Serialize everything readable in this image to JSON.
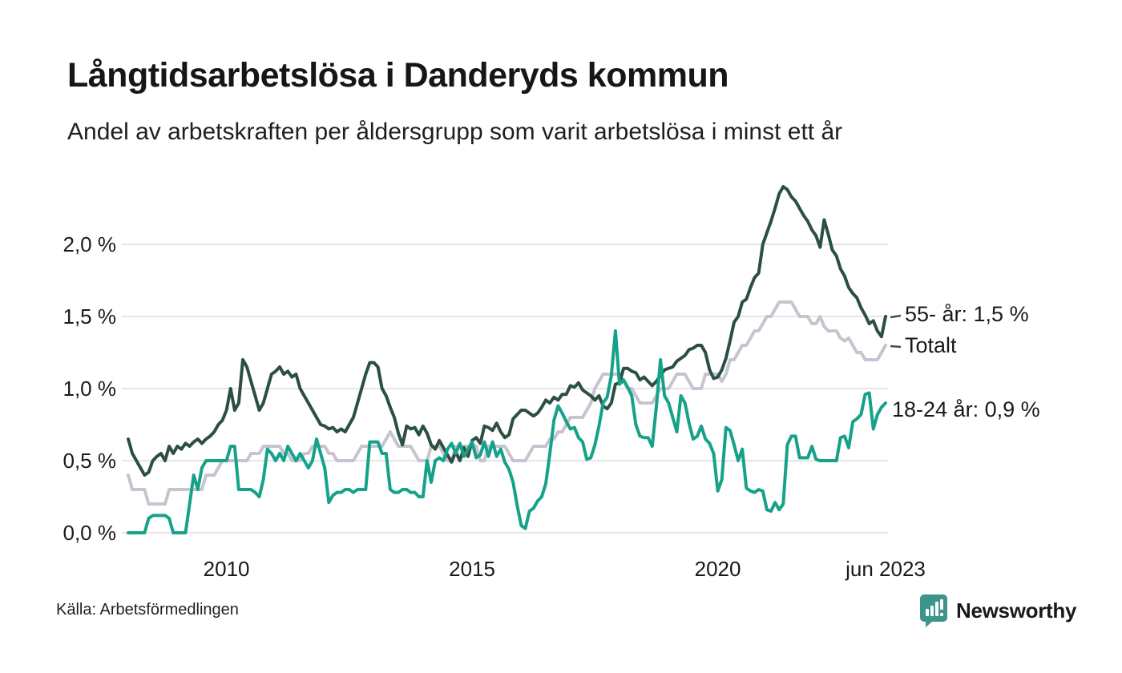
{
  "header": {
    "title": "Långtidsarbetslösa i Danderyds kommun",
    "subtitle": "Andel av arbetskraften per åldersgrupp som varit arbetslösa i minst ett år"
  },
  "footer": {
    "source": "Källa: Arbetsförmedlingen",
    "logo_text": "Newsworthy",
    "logo_color": "#3d948b",
    "logo_icon": "newsworthy-bar-chart-pin-icon"
  },
  "colors": {
    "grid": "#e6e6e6",
    "axis_text": "#1a1a1a",
    "leader_dash": "#4a4a4a",
    "background": "#ffffff"
  },
  "chart_data": {
    "type": "line",
    "title": "Långtidsarbetslösa i Danderyds kommun",
    "subtitle": "Andel av arbetskraften per åldersgrupp som varit arbetslösa i minst ett år",
    "x_unit": "month",
    "x_start": "2008-01",
    "x_end": "2023-06",
    "grid": true,
    "legend_position": "right-end-labels",
    "y_axis": {
      "min": 0.0,
      "max": 2.5,
      "unit": "%"
    },
    "y_ticks": [
      {
        "label": "0,0 %",
        "value": 0.0
      },
      {
        "label": "0,5 %",
        "value": 0.5
      },
      {
        "label": "1,0 %",
        "value": 1.0
      },
      {
        "label": "1,5 %",
        "value": 1.5
      },
      {
        "label": "2,0 %",
        "value": 2.0
      }
    ],
    "x_ticks": [
      {
        "label": "2010",
        "month_index": 24
      },
      {
        "label": "2015",
        "month_index": 84
      },
      {
        "label": "2020",
        "month_index": 144
      },
      {
        "label": "jun 2023",
        "month_index": 185
      }
    ],
    "series": [
      {
        "name": "Totalt",
        "end_label": "Totalt",
        "end_value": 1.3,
        "color": "#c6c4d0",
        "values": [
          0.4,
          0.3,
          0.3,
          0.3,
          0.3,
          0.2,
          0.2,
          0.2,
          0.2,
          0.2,
          0.3,
          0.3,
          0.3,
          0.3,
          0.3,
          0.3,
          0.3,
          0.3,
          0.3,
          0.4,
          0.4,
          0.4,
          0.45,
          0.5,
          0.5,
          0.5,
          0.5,
          0.5,
          0.5,
          0.5,
          0.55,
          0.55,
          0.55,
          0.6,
          0.6,
          0.6,
          0.6,
          0.6,
          0.55,
          0.55,
          0.5,
          0.5,
          0.5,
          0.55,
          0.55,
          0.6,
          0.6,
          0.6,
          0.6,
          0.55,
          0.55,
          0.5,
          0.5,
          0.5,
          0.5,
          0.5,
          0.55,
          0.6,
          0.6,
          0.6,
          0.6,
          0.6,
          0.6,
          0.65,
          0.7,
          0.65,
          0.6,
          0.6,
          0.6,
          0.6,
          0.55,
          0.5,
          0.5,
          0.5,
          0.6,
          0.6,
          0.6,
          0.55,
          0.5,
          0.5,
          0.6,
          0.6,
          0.6,
          0.6,
          0.6,
          0.6,
          0.5,
          0.5,
          0.6,
          0.6,
          0.6,
          0.6,
          0.6,
          0.55,
          0.5,
          0.5,
          0.5,
          0.5,
          0.55,
          0.6,
          0.6,
          0.6,
          0.6,
          0.65,
          0.65,
          0.7,
          0.7,
          0.75,
          0.8,
          0.8,
          0.8,
          0.8,
          0.85,
          0.9,
          1.0,
          1.05,
          1.1,
          1.1,
          1.1,
          1.1,
          1.1,
          1.05,
          1.0,
          1.0,
          0.95,
          0.9,
          0.9,
          0.9,
          0.9,
          0.95,
          1.0,
          1.0,
          1.0,
          1.05,
          1.1,
          1.1,
          1.1,
          1.05,
          1.0,
          1.0,
          1.0,
          1.1,
          1.1,
          1.1,
          1.1,
          1.05,
          1.1,
          1.2,
          1.2,
          1.25,
          1.3,
          1.3,
          1.35,
          1.4,
          1.4,
          1.45,
          1.5,
          1.5,
          1.55,
          1.6,
          1.6,
          1.6,
          1.6,
          1.55,
          1.5,
          1.5,
          1.5,
          1.45,
          1.45,
          1.5,
          1.43,
          1.4,
          1.4,
          1.4,
          1.35,
          1.33,
          1.35,
          1.3,
          1.25,
          1.25,
          1.2,
          1.2,
          1.2,
          1.2,
          1.25,
          1.3
        ]
      },
      {
        "name": "55- år",
        "end_label": "55- år: 1,5 %",
        "end_value": 1.5,
        "color": "#2c4f43",
        "values": [
          0.65,
          0.55,
          0.5,
          0.45,
          0.4,
          0.42,
          0.5,
          0.53,
          0.55,
          0.5,
          0.6,
          0.55,
          0.6,
          0.58,
          0.62,
          0.6,
          0.63,
          0.65,
          0.62,
          0.65,
          0.67,
          0.7,
          0.75,
          0.78,
          0.85,
          1.0,
          0.85,
          0.9,
          1.2,
          1.15,
          1.05,
          0.95,
          0.85,
          0.9,
          1.0,
          1.1,
          1.12,
          1.15,
          1.1,
          1.12,
          1.08,
          1.1,
          1.0,
          0.95,
          0.9,
          0.85,
          0.8,
          0.75,
          0.74,
          0.72,
          0.73,
          0.7,
          0.72,
          0.7,
          0.75,
          0.8,
          0.9,
          1.0,
          1.1,
          1.18,
          1.18,
          1.15,
          1.0,
          0.95,
          0.87,
          0.8,
          0.69,
          0.61,
          0.74,
          0.72,
          0.73,
          0.68,
          0.74,
          0.69,
          0.61,
          0.58,
          0.64,
          0.59,
          0.54,
          0.49,
          0.56,
          0.5,
          0.59,
          0.53,
          0.64,
          0.66,
          0.62,
          0.74,
          0.73,
          0.71,
          0.76,
          0.7,
          0.66,
          0.68,
          0.79,
          0.82,
          0.85,
          0.85,
          0.83,
          0.81,
          0.83,
          0.87,
          0.92,
          0.9,
          0.94,
          0.92,
          0.96,
          0.96,
          1.02,
          1.01,
          1.04,
          0.99,
          0.97,
          0.95,
          0.92,
          0.95,
          0.88,
          0.86,
          0.9,
          1.03,
          1.04,
          1.14,
          1.14,
          1.12,
          1.11,
          1.06,
          1.08,
          1.05,
          1.02,
          1.05,
          1.09,
          1.13,
          1.14,
          1.15,
          1.19,
          1.21,
          1.23,
          1.27,
          1.28,
          1.3,
          1.3,
          1.25,
          1.13,
          1.07,
          1.08,
          1.13,
          1.21,
          1.33,
          1.46,
          1.5,
          1.6,
          1.62,
          1.7,
          1.77,
          1.8,
          2.0,
          2.08,
          2.16,
          2.25,
          2.35,
          2.4,
          2.38,
          2.33,
          2.3,
          2.25,
          2.2,
          2.16,
          2.1,
          2.06,
          1.98,
          2.17,
          2.07,
          1.96,
          1.92,
          1.83,
          1.78,
          1.7,
          1.66,
          1.63,
          1.56,
          1.51,
          1.45,
          1.47,
          1.4,
          1.36,
          1.5
        ]
      },
      {
        "name": "18-24 år",
        "end_label": "18-24 år: 0,9 %",
        "end_value": 0.9,
        "color": "#16a28a",
        "values": [
          0.0,
          0.0,
          0.0,
          0.0,
          0.0,
          0.1,
          0.12,
          0.12,
          0.12,
          0.12,
          0.1,
          0.0,
          0.0,
          0.0,
          0.0,
          0.2,
          0.4,
          0.3,
          0.45,
          0.5,
          0.5,
          0.5,
          0.5,
          0.5,
          0.5,
          0.6,
          0.6,
          0.3,
          0.3,
          0.3,
          0.3,
          0.28,
          0.25,
          0.37,
          0.58,
          0.55,
          0.5,
          0.55,
          0.5,
          0.6,
          0.55,
          0.5,
          0.55,
          0.5,
          0.45,
          0.5,
          0.65,
          0.55,
          0.45,
          0.21,
          0.26,
          0.28,
          0.28,
          0.3,
          0.3,
          0.28,
          0.3,
          0.3,
          0.3,
          0.63,
          0.63,
          0.63,
          0.55,
          0.55,
          0.3,
          0.28,
          0.28,
          0.3,
          0.3,
          0.28,
          0.28,
          0.25,
          0.25,
          0.5,
          0.35,
          0.5,
          0.52,
          0.5,
          0.58,
          0.62,
          0.55,
          0.62,
          0.53,
          0.58,
          0.63,
          0.52,
          0.54,
          0.63,
          0.53,
          0.63,
          0.53,
          0.58,
          0.49,
          0.44,
          0.35,
          0.19,
          0.05,
          0.03,
          0.15,
          0.17,
          0.22,
          0.25,
          0.34,
          0.55,
          0.78,
          0.88,
          0.83,
          0.77,
          0.72,
          0.73,
          0.66,
          0.63,
          0.51,
          0.52,
          0.61,
          0.74,
          0.9,
          0.94,
          1.09,
          1.4,
          1.03,
          1.06,
          1.01,
          0.95,
          0.75,
          0.67,
          0.66,
          0.66,
          0.6,
          0.87,
          1.2,
          0.95,
          0.9,
          0.8,
          0.7,
          0.95,
          0.9,
          0.76,
          0.65,
          0.67,
          0.74,
          0.65,
          0.62,
          0.55,
          0.29,
          0.37,
          0.73,
          0.71,
          0.61,
          0.5,
          0.58,
          0.31,
          0.29,
          0.28,
          0.3,
          0.29,
          0.16,
          0.15,
          0.21,
          0.16,
          0.2,
          0.61,
          0.67,
          0.67,
          0.52,
          0.52,
          0.52,
          0.6,
          0.51,
          0.5,
          0.5,
          0.5,
          0.5,
          0.5,
          0.66,
          0.67,
          0.59,
          0.77,
          0.79,
          0.82,
          0.96,
          0.97,
          0.72,
          0.82,
          0.87,
          0.9
        ]
      }
    ]
  }
}
